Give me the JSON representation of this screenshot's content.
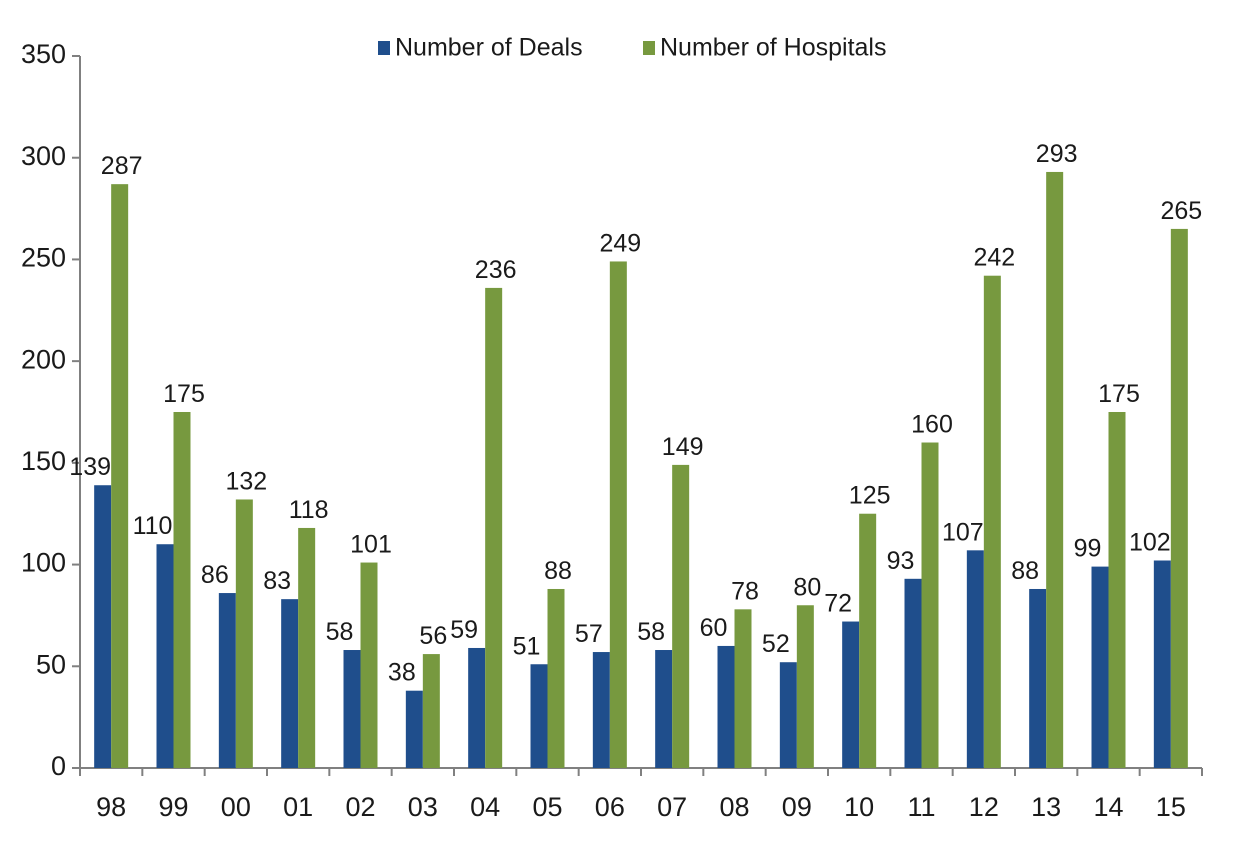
{
  "chart_data": {
    "type": "bar",
    "title": "",
    "xlabel": "",
    "ylabel": "",
    "ylim": [
      0,
      350
    ],
    "yticks": [
      0,
      50,
      100,
      150,
      200,
      250,
      300,
      350
    ],
    "grid": false,
    "legend_position": "top",
    "categories": [
      "98",
      "99",
      "00",
      "01",
      "02",
      "03",
      "04",
      "05",
      "06",
      "07",
      "08",
      "09",
      "10",
      "11",
      "12",
      "13",
      "14",
      "15"
    ],
    "series": [
      {
        "name": "Number of Deals",
        "color": "#1f4e8c",
        "values": [
          139,
          110,
          86,
          83,
          58,
          38,
          59,
          51,
          57,
          58,
          60,
          52,
          72,
          93,
          107,
          88,
          99,
          102
        ]
      },
      {
        "name": "Number of Hospitals",
        "color": "#77993f",
        "values": [
          287,
          175,
          132,
          118,
          101,
          56,
          236,
          88,
          249,
          149,
          78,
          80,
          125,
          160,
          242,
          293,
          175,
          265
        ]
      }
    ]
  }
}
